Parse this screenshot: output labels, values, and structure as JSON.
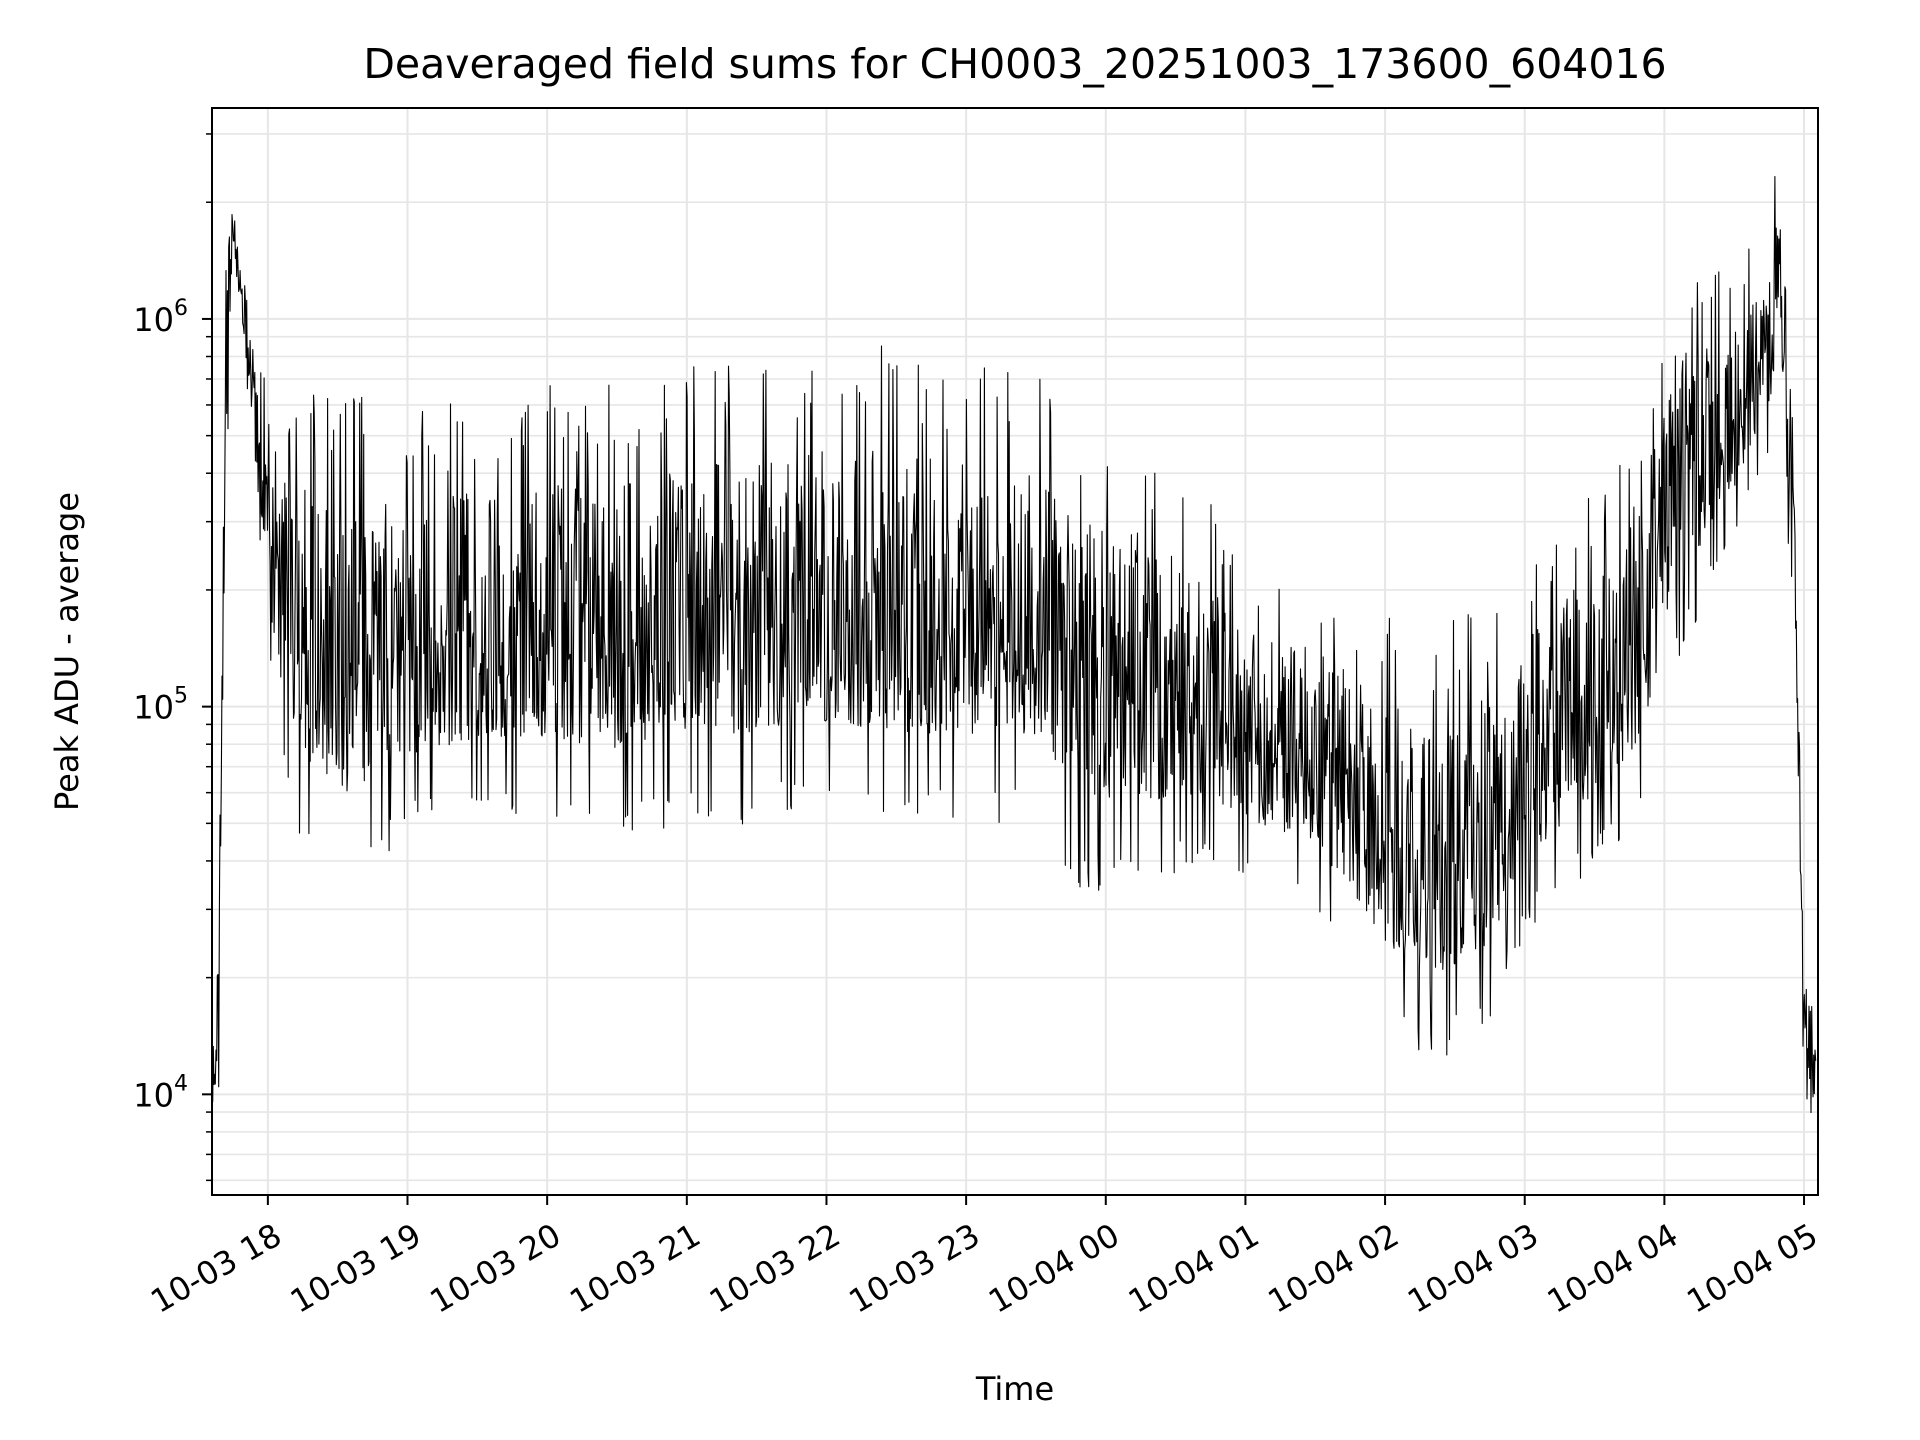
{
  "chart_data": {
    "type": "line",
    "title": "Deaveraged field sums for CH0003_20251003_173600_604016",
    "xlabel": "Time",
    "ylabel": "Peak ADU - average",
    "x_axis": {
      "kind": "datetime",
      "range": [
        "2025-10-03 17:36",
        "2025-10-04 05:06"
      ],
      "tick_values": [
        "2025-10-03 18:00",
        "2025-10-03 19:00",
        "2025-10-03 20:00",
        "2025-10-03 21:00",
        "2025-10-03 22:00",
        "2025-10-03 23:00",
        "2025-10-04 00:00",
        "2025-10-04 01:00",
        "2025-10-04 02:00",
        "2025-10-04 03:00",
        "2025-10-04 04:00",
        "2025-10-04 05:00"
      ],
      "tick_labels": [
        "10-03 18",
        "10-03 19",
        "10-03 20",
        "10-03 21",
        "10-03 22",
        "10-03 23",
        "10-04 00",
        "10-04 01",
        "10-04 02",
        "10-04 03",
        "10-04 04",
        "10-04 05"
      ],
      "tick_label_rotation": 30
    },
    "y_axis": {
      "scale": "log",
      "range": [
        5500,
        3500000
      ],
      "major_ticks": [
        10000,
        100000,
        1000000
      ],
      "major_tick_labels": [
        {
          "base": "10",
          "exp": "4"
        },
        {
          "base": "10",
          "exp": "5"
        },
        {
          "base": "10",
          "exp": "6"
        }
      ]
    },
    "grid": true,
    "legend": "none",
    "line_color": "#000000",
    "grid_color": "#e6e6e6",
    "series": [
      {
        "envelope": [
          {
            "x": "2025-10-03 17:36",
            "lo": 10000,
            "hi": 15000
          },
          {
            "x": "2025-10-03 17:39",
            "lo": 8500,
            "hi": 33000
          },
          {
            "x": "2025-10-03 17:41",
            "lo": 200000,
            "hi": 1200000
          },
          {
            "x": "2025-10-03 17:45",
            "lo": 1500000,
            "hi": 2000000
          },
          {
            "x": "2025-10-03 17:48",
            "lo": 1000000,
            "hi": 1600000
          },
          {
            "x": "2025-10-03 17:52",
            "lo": 600000,
            "hi": 1200000
          },
          {
            "x": "2025-10-03 17:56",
            "lo": 300000,
            "hi": 700000
          },
          {
            "x": "2025-10-03 18:00",
            "lo": 150000,
            "hi": 600000
          },
          {
            "x": "2025-10-03 18:10",
            "lo": 60000,
            "hi": 550000
          },
          {
            "x": "2025-10-03 18:30",
            "lo": 40000,
            "hi": 500000
          },
          {
            "x": "2025-10-03 19:00",
            "lo": 55000,
            "hi": 450000
          },
          {
            "x": "2025-10-03 19:30",
            "lo": 60000,
            "hi": 500000
          },
          {
            "x": "2025-10-03 20:00",
            "lo": 60000,
            "hi": 520000
          },
          {
            "x": "2025-10-03 20:30",
            "lo": 55000,
            "hi": 550000
          },
          {
            "x": "2025-10-03 21:00",
            "lo": 60000,
            "hi": 580000
          },
          {
            "x": "2025-10-03 21:30",
            "lo": 60000,
            "hi": 620000
          },
          {
            "x": "2025-10-03 22:00",
            "lo": 65000,
            "hi": 650000
          },
          {
            "x": "2025-10-03 22:30",
            "lo": 60000,
            "hi": 650000
          },
          {
            "x": "2025-10-03 23:00",
            "lo": 60000,
            "hi": 600000
          },
          {
            "x": "2025-10-03 23:30",
            "lo": 60000,
            "hi": 550000
          },
          {
            "x": "2025-10-03 23:50",
            "lo": 40000,
            "hi": 450000
          },
          {
            "x": "2025-10-04 00:15",
            "lo": 40000,
            "hi": 400000
          },
          {
            "x": "2025-10-04 00:40",
            "lo": 45000,
            "hi": 300000
          },
          {
            "x": "2025-10-04 01:00",
            "lo": 40000,
            "hi": 200000
          },
          {
            "x": "2025-10-04 01:30",
            "lo": 35000,
            "hi": 180000
          },
          {
            "x": "2025-10-04 02:00",
            "lo": 18000,
            "hi": 150000
          },
          {
            "x": "2025-10-04 02:20",
            "lo": 14000,
            "hi": 120000
          },
          {
            "x": "2025-10-04 02:45",
            "lo": 18000,
            "hi": 150000
          },
          {
            "x": "2025-10-04 03:00",
            "lo": 30000,
            "hi": 200000
          },
          {
            "x": "2025-10-04 03:30",
            "lo": 45000,
            "hi": 300000
          },
          {
            "x": "2025-10-04 03:50",
            "lo": 60000,
            "hi": 500000
          },
          {
            "x": "2025-10-04 04:05",
            "lo": 150000,
            "hi": 1100000
          },
          {
            "x": "2025-10-04 04:30",
            "lo": 300000,
            "hi": 1200000
          },
          {
            "x": "2025-10-04 04:45",
            "lo": 500000,
            "hi": 1700000
          },
          {
            "x": "2025-10-04 04:50",
            "lo": 700000,
            "hi": 2500000
          },
          {
            "x": "2025-10-04 04:55",
            "lo": 150000,
            "hi": 900000
          },
          {
            "x": "2025-10-04 05:00",
            "lo": 11000,
            "hi": 30000
          },
          {
            "x": "2025-10-04 05:05",
            "lo": 8000,
            "hi": 16000
          }
        ]
      }
    ]
  }
}
